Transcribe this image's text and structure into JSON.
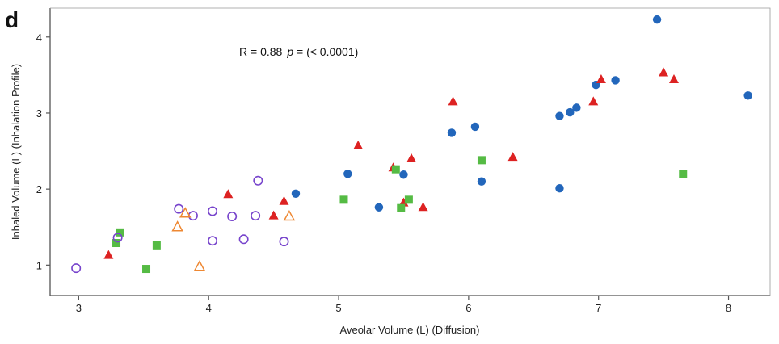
{
  "panel_label": "d",
  "colors": {
    "blue": "#2266bb",
    "red": "#dd2222",
    "green": "#55bb44",
    "purple": "#7744cc",
    "orange": "#ee8833",
    "axis": "#555555"
  },
  "chart_data": {
    "type": "scatter",
    "title": "",
    "xlabel": "Aveolar Volume (L) (Diffusion)",
    "ylabel": "Inhaled Volume (L) (Inhalation Profile)",
    "xlim": [
      2.78,
      8.32
    ],
    "ylim": [
      0.6,
      4.38
    ],
    "xticks": [
      3,
      4,
      5,
      6,
      7,
      8
    ],
    "yticks": [
      1,
      2,
      3,
      4
    ],
    "grid": false,
    "annotation": {
      "text_r": "R = 0.88",
      "text_p": "p",
      "text_rest": " = (< 0.0001)"
    },
    "series": [
      {
        "marker": "circle-filled",
        "color": "#2266bb",
        "points": [
          [
            4.67,
            1.94
          ],
          [
            5.07,
            2.2
          ],
          [
            5.31,
            1.76
          ],
          [
            5.5,
            2.19
          ],
          [
            5.87,
            2.74
          ],
          [
            6.05,
            2.82
          ],
          [
            6.1,
            2.1
          ],
          [
            6.7,
            2.96
          ],
          [
            6.7,
            2.01
          ],
          [
            6.78,
            3.01
          ],
          [
            6.83,
            3.07
          ],
          [
            6.98,
            3.37
          ],
          [
            7.13,
            3.43
          ],
          [
            7.45,
            4.23
          ],
          [
            8.15,
            3.23
          ]
        ]
      },
      {
        "marker": "triangle-filled",
        "color": "#dd2222",
        "points": [
          [
            3.23,
            1.13
          ],
          [
            4.15,
            1.93
          ],
          [
            4.5,
            1.65
          ],
          [
            4.58,
            1.84
          ],
          [
            5.15,
            2.57
          ],
          [
            5.42,
            2.28
          ],
          [
            5.5,
            1.82
          ],
          [
            5.56,
            2.4
          ],
          [
            5.65,
            1.76
          ],
          [
            5.88,
            3.15
          ],
          [
            6.34,
            2.42
          ],
          [
            6.96,
            3.15
          ],
          [
            7.02,
            3.44
          ],
          [
            7.5,
            3.53
          ],
          [
            7.58,
            3.44
          ]
        ]
      },
      {
        "marker": "square-filled",
        "color": "#55bb44",
        "points": [
          [
            3.29,
            1.29
          ],
          [
            3.32,
            1.43
          ],
          [
            3.52,
            0.95
          ],
          [
            3.6,
            1.26
          ],
          [
            5.04,
            1.86
          ],
          [
            5.44,
            2.26
          ],
          [
            5.48,
            1.75
          ],
          [
            5.54,
            1.86
          ],
          [
            6.1,
            2.38
          ],
          [
            7.65,
            2.2
          ]
        ]
      },
      {
        "marker": "circle-open",
        "color": "#7744cc",
        "points": [
          [
            2.98,
            0.96
          ],
          [
            3.3,
            1.36
          ],
          [
            3.77,
            1.74
          ],
          [
            3.88,
            1.65
          ],
          [
            4.03,
            1.71
          ],
          [
            4.03,
            1.32
          ],
          [
            4.18,
            1.64
          ],
          [
            4.27,
            1.34
          ],
          [
            4.36,
            1.65
          ],
          [
            4.38,
            2.11
          ],
          [
            4.58,
            1.31
          ]
        ]
      },
      {
        "marker": "triangle-open",
        "color": "#ee8833",
        "points": [
          [
            3.76,
            1.5
          ],
          [
            3.82,
            1.68
          ],
          [
            3.93,
            0.98
          ],
          [
            4.62,
            1.64
          ]
        ]
      }
    ]
  }
}
